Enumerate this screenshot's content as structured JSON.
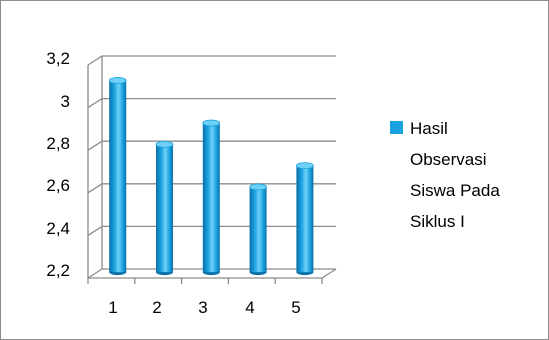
{
  "chart_data": {
    "type": "bar",
    "categories": [
      "1",
      "2",
      "3",
      "4",
      "5"
    ],
    "series": [
      {
        "name": "Hasil Observasi Siswa Pada Siklus I",
        "values": [
          3.1,
          2.8,
          2.9,
          2.6,
          2.7
        ]
      }
    ],
    "y_ticks": [
      "2,2",
      "2,4",
      "2,6",
      "2,8",
      "3",
      "3,2"
    ],
    "ylim": [
      2.2,
      3.2
    ],
    "grid": true,
    "legend_position": "right",
    "legend_lines": [
      "Hasil",
      "Observasi",
      "Siswa Pada",
      "Siklus I"
    ],
    "colors": {
      "bar": "#1aa3e0",
      "bar_dark": "#0a6fa8",
      "bar_light": "#6fd0f7",
      "grid": "#8c8c8c"
    }
  }
}
